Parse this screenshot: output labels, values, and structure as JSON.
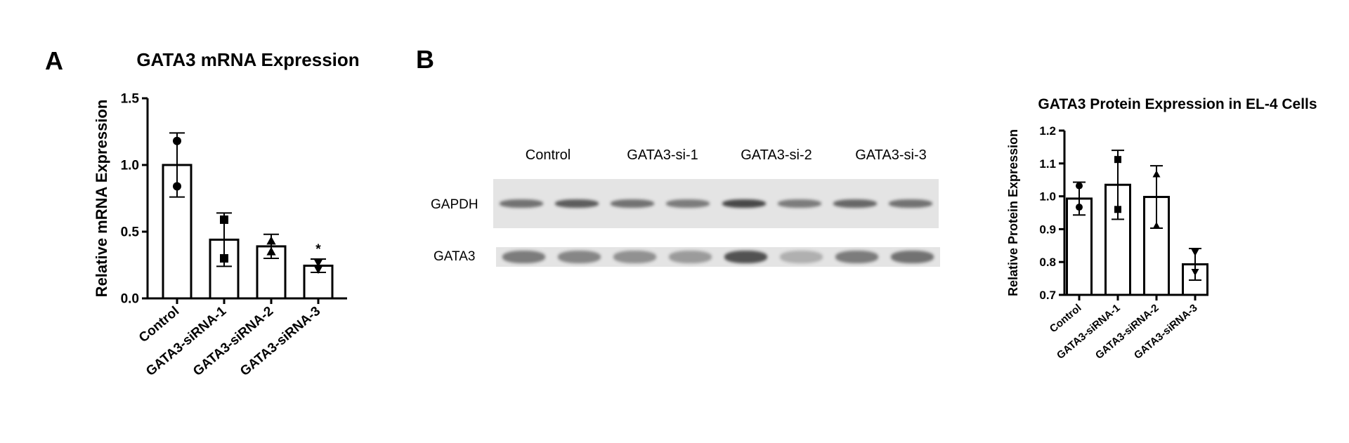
{
  "panels": {
    "a_letter": "A",
    "b_letter": "B"
  },
  "chart_data": [
    {
      "type": "bar",
      "title": "GATA3 mRNA Expression",
      "xlabel": "",
      "ylabel": "Relative mRNA Expression",
      "categories": [
        "Control",
        "GATA3-siRNA-1",
        "GATA3-siRNA-2",
        "GATA3-siRNA-3"
      ],
      "values": [
        1.0,
        0.44,
        0.39,
        0.245
      ],
      "errors": [
        0.24,
        0.2,
        0.09,
        0.05
      ],
      "points": [
        [
          1.18,
          0.84
        ],
        [
          0.59,
          0.3
        ],
        [
          0.43,
          0.35
        ],
        [
          0.27,
          0.22
        ]
      ],
      "markers": [
        "circle",
        "square",
        "triangle-up",
        "triangle-down"
      ],
      "annotations": [
        "",
        "",
        "",
        "*"
      ],
      "ylim": [
        0,
        1.5
      ],
      "yticks": [
        "0.0",
        "0.5",
        "1.0",
        "1.5"
      ],
      "grid": false
    },
    {
      "type": "bar",
      "title": "GATA3 Protein Expression in EL-4 Cells",
      "xlabel": "",
      "ylabel": "Relative Protein Expression",
      "categories": [
        "Control",
        "GATA3-siRNA-1",
        "GATA3-siRNA-2",
        "GATA3-siRNA-3"
      ],
      "values": [
        0.993,
        1.035,
        0.998,
        0.793
      ],
      "errors": [
        0.05,
        0.105,
        0.095,
        0.048
      ],
      "points": [
        [
          1.032,
          0.967
        ],
        [
          1.112,
          0.96
        ],
        [
          1.067,
          0.91
        ],
        [
          0.83,
          0.77
        ]
      ],
      "markers": [
        "circle",
        "square",
        "triangle-up",
        "triangle-down"
      ],
      "ylim": [
        0.7,
        1.2
      ],
      "yticks": [
        "0.7",
        "0.8",
        "0.9",
        "1.0",
        "1.1",
        "1.2"
      ],
      "grid": false
    }
  ],
  "blot": {
    "lane_labels": [
      "Control",
      "GATA3-si-1",
      "GATA3-si-2",
      "GATA3-si-3"
    ],
    "rows": [
      {
        "label": "GAPDH",
        "intensities": [
          0.55,
          0.65,
          0.55,
          0.5,
          0.75,
          0.5,
          0.6,
          0.55
        ]
      },
      {
        "label": "GATA3",
        "intensities": [
          0.5,
          0.45,
          0.4,
          0.35,
          0.7,
          0.25,
          0.5,
          0.55
        ]
      }
    ]
  }
}
